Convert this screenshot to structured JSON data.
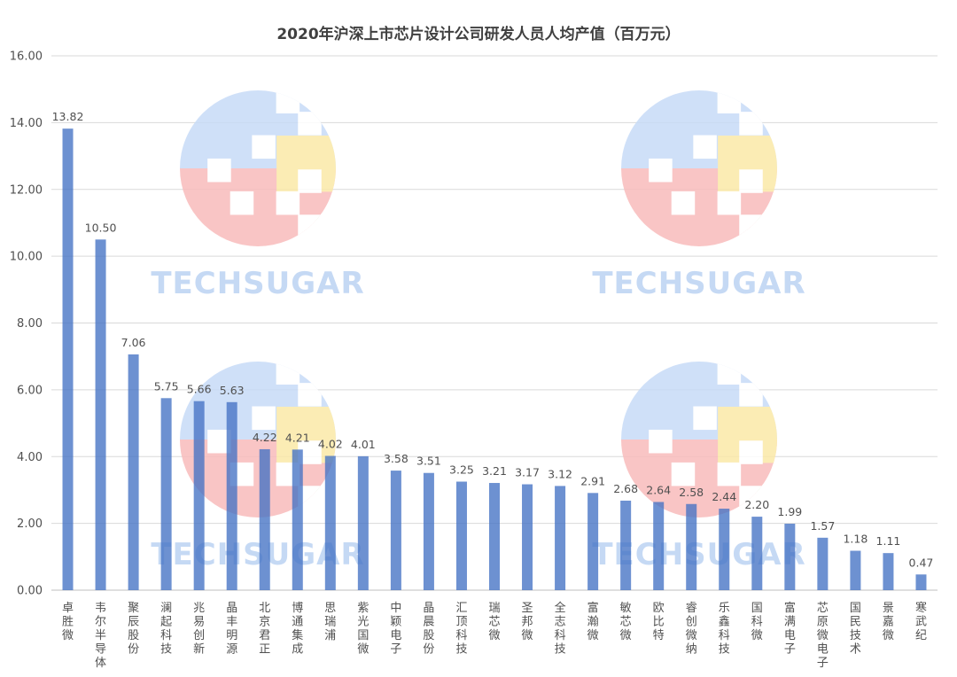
{
  "chart_data": {
    "type": "bar",
    "title": "2020年沪深上市芯片设计公司研发人员人均产值（百万元）",
    "xlabel": "",
    "ylabel": "",
    "ylim": [
      0,
      16
    ],
    "ytick_labels": [
      "0.00",
      "2.00",
      "4.00",
      "6.00",
      "8.00",
      "10.00",
      "12.00",
      "14.00",
      "16.00"
    ],
    "grid": true,
    "legend": "none",
    "bar_color": "#4472c4",
    "categories": [
      "卓胜微",
      "韦尔半导体",
      "聚辰股份",
      "澜起科技",
      "兆易创新",
      "晶丰明源",
      "北京君正",
      "博通集成",
      "思瑞浦",
      "紫光国微",
      "中颖电子",
      "晶晨股份",
      "汇顶科技",
      "瑞芯微",
      "圣邦微",
      "全志科技",
      "富瀚微",
      "敏芯微",
      "欧比特",
      "睿创微纳",
      "乐鑫科技",
      "国科微",
      "富满电子",
      "芯原微电子",
      "国民技术",
      "景嘉微",
      "寒武纪"
    ],
    "values": [
      13.82,
      10.5,
      7.06,
      5.75,
      5.66,
      5.63,
      4.22,
      4.21,
      4.02,
      4.01,
      3.58,
      3.51,
      3.25,
      3.21,
      3.17,
      3.12,
      2.91,
      2.68,
      2.64,
      2.58,
      2.44,
      2.2,
      1.99,
      1.57,
      1.18,
      1.11,
      0.47
    ],
    "value_labels": [
      "13.82",
      "10.50",
      "7.06",
      "5.75",
      "5.66",
      "5.63",
      "4.22",
      "4.21",
      "4.02",
      "4.01",
      "3.58",
      "3.51",
      "3.25",
      "3.21",
      "3.17",
      "3.12",
      "2.91",
      "2.68",
      "2.64",
      "2.58",
      "2.44",
      "2.20",
      "1.99",
      "1.57",
      "1.18",
      "1.11",
      "0.47"
    ]
  },
  "watermark": {
    "text": "TECHSUGAR",
    "colors": {
      "blue": "#c7dbf7",
      "yellow": "#fbe9a8",
      "red": "#f8bcbc",
      "green": "#c9ecc4",
      "text": "#bcd3f3"
    }
  }
}
